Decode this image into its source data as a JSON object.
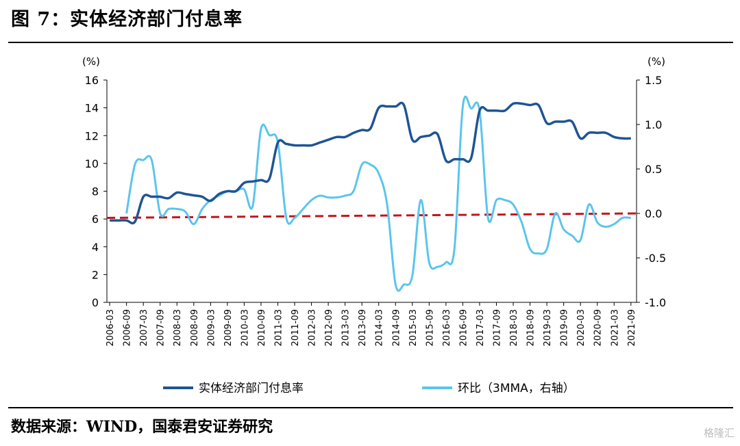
{
  "figure": {
    "title": "图 7：实体经济部门付息率",
    "source": "数据来源：WIND，国泰君安证券研究",
    "watermark": "格隆汇"
  },
  "colors": {
    "series1": "#1f5494",
    "series2": "#5bc4ec",
    "reference": "#c0161c"
  },
  "chart_data": {
    "type": "line",
    "y_left_unit": "(%)",
    "y_right_unit": "(%)",
    "ylim_left": [
      0,
      16
    ],
    "ylim_right": [
      -1.0,
      1.5
    ],
    "yticks_left": [
      "0",
      "2",
      "4",
      "6",
      "8",
      "10",
      "12",
      "14",
      "16"
    ],
    "yticks_right": [
      "-1.0",
      "-0.5",
      "0.0",
      "0.5",
      "1.0",
      "1.5"
    ],
    "x_ticks": [
      "2006-03",
      "2006-09",
      "2007-03",
      "2007-09",
      "2008-03",
      "2008-09",
      "2009-03",
      "2009-09",
      "2010-03",
      "2010-09",
      "2011-03",
      "2011-09",
      "2012-03",
      "2012-09",
      "2013-03",
      "2013-09",
      "2014-03",
      "2014-09",
      "2015-03",
      "2015-09",
      "2016-03",
      "2016-09",
      "2017-03",
      "2017-09",
      "2018-03",
      "2018-09",
      "2019-03",
      "2019-09",
      "2020-03",
      "2020-09",
      "2021-03",
      "2021-09"
    ],
    "legend_position": "bottom",
    "grid": false,
    "series": [
      {
        "name": "实体经济部门付息率",
        "axis": "left",
        "x": [
          "2006-03",
          "2006-06",
          "2006-09",
          "2006-12",
          "2007-03",
          "2007-06",
          "2007-09",
          "2007-12",
          "2008-03",
          "2008-06",
          "2008-09",
          "2008-12",
          "2009-03",
          "2009-06",
          "2009-09",
          "2009-12",
          "2010-03",
          "2010-06",
          "2010-09",
          "2010-12",
          "2011-03",
          "2011-06",
          "2011-09",
          "2011-12",
          "2012-03",
          "2012-06",
          "2012-09",
          "2012-12",
          "2013-03",
          "2013-06",
          "2013-09",
          "2013-12",
          "2014-03",
          "2014-06",
          "2014-09",
          "2014-12",
          "2015-03",
          "2015-06",
          "2015-09",
          "2015-12",
          "2016-03",
          "2016-06",
          "2016-09",
          "2016-12",
          "2017-03",
          "2017-06",
          "2017-09",
          "2017-12",
          "2018-03",
          "2018-06",
          "2018-09",
          "2018-12",
          "2019-03",
          "2019-06",
          "2019-09",
          "2019-12",
          "2020-03",
          "2020-06",
          "2020-09",
          "2020-12",
          "2021-03",
          "2021-06",
          "2021-09"
        ],
        "values": [
          5.9,
          5.9,
          5.9,
          5.8,
          7.6,
          7.6,
          7.6,
          7.5,
          7.9,
          7.8,
          7.7,
          7.6,
          7.3,
          7.8,
          8.0,
          8.0,
          8.6,
          8.7,
          8.8,
          8.9,
          11.5,
          11.4,
          11.3,
          11.3,
          11.3,
          11.5,
          11.7,
          11.9,
          11.9,
          12.2,
          12.4,
          12.5,
          14.0,
          14.1,
          14.1,
          14.2,
          11.7,
          11.9,
          12.0,
          12.1,
          10.2,
          10.3,
          10.3,
          10.4,
          13.8,
          13.8,
          13.8,
          13.8,
          14.3,
          14.3,
          14.2,
          14.2,
          12.9,
          13.0,
          13.0,
          13.0,
          11.8,
          12.2,
          12.2,
          12.2,
          11.9,
          11.8,
          11.8
        ]
      },
      {
        "name": "环比（3MMA，右轴）",
        "axis": "right",
        "x": [
          "2006-09",
          "2006-12",
          "2007-03",
          "2007-06",
          "2007-09",
          "2007-12",
          "2008-03",
          "2008-06",
          "2008-09",
          "2008-12",
          "2009-03",
          "2009-06",
          "2009-09",
          "2009-12",
          "2010-03",
          "2010-06",
          "2010-09",
          "2010-12",
          "2011-03",
          "2011-06",
          "2011-09",
          "2011-12",
          "2012-03",
          "2012-06",
          "2012-09",
          "2012-12",
          "2013-03",
          "2013-06",
          "2013-09",
          "2013-12",
          "2014-03",
          "2014-06",
          "2014-09",
          "2014-12",
          "2015-03",
          "2015-06",
          "2015-09",
          "2015-12",
          "2016-03",
          "2016-06",
          "2016-09",
          "2016-12",
          "2017-03",
          "2017-06",
          "2017-09",
          "2017-12",
          "2018-03",
          "2018-06",
          "2018-09",
          "2018-12",
          "2019-03",
          "2019-06",
          "2019-09",
          "2019-12",
          "2020-03",
          "2020-06",
          "2020-09",
          "2020-12",
          "2021-03",
          "2021-06",
          "2021-09"
        ],
        "values": [
          0.0,
          0.55,
          0.6,
          0.6,
          0.0,
          0.05,
          0.05,
          0.02,
          -0.12,
          0.05,
          0.15,
          0.2,
          0.25,
          0.25,
          0.27,
          0.08,
          0.95,
          0.88,
          0.8,
          -0.05,
          -0.05,
          0.05,
          0.15,
          0.2,
          0.18,
          0.18,
          0.2,
          0.25,
          0.55,
          0.55,
          0.45,
          0.1,
          -0.8,
          -0.8,
          -0.7,
          0.15,
          -0.55,
          -0.6,
          -0.55,
          -0.4,
          1.2,
          1.18,
          1.15,
          -0.05,
          0.15,
          0.15,
          0.1,
          -0.1,
          -0.4,
          -0.45,
          -0.4,
          0.0,
          -0.18,
          -0.25,
          -0.3,
          0.1,
          -0.1,
          -0.15,
          -0.12,
          -0.05,
          -0.05
        ]
      }
    ],
    "reference_line": {
      "axis": "right",
      "from": -0.05,
      "to": 0.0,
      "style": "dashed"
    }
  }
}
